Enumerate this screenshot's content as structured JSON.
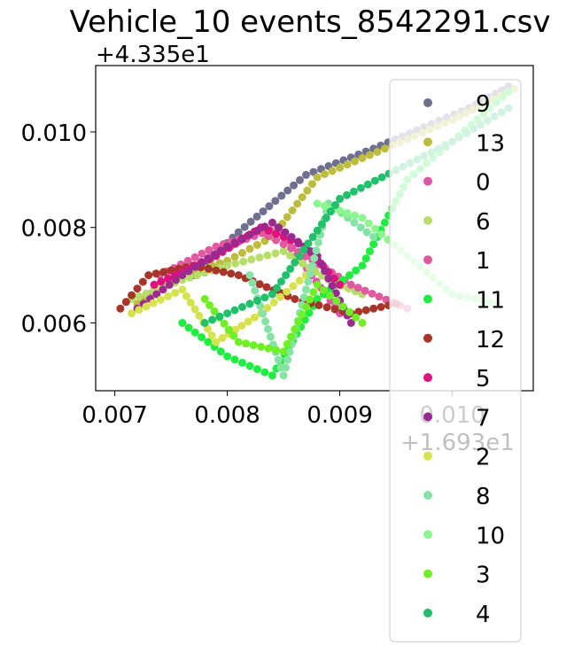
{
  "chart_data": {
    "type": "scatter",
    "title": "Vehicle_10 events_8542291.csv",
    "xlabel": "",
    "ylabel": "",
    "x_offset_label": "+1.693e1",
    "y_offset_label": "+4.335e1",
    "x_ticks": [
      0.007,
      0.008,
      0.009,
      0.01
    ],
    "x_tick_labels": [
      "0.007",
      "0.008",
      "0.009",
      "0.010"
    ],
    "y_ticks": [
      0.006,
      0.008,
      0.01
    ],
    "y_tick_labels": [
      "0.006",
      "0.008",
      "0.010"
    ],
    "xlim": [
      0.00683,
      0.01072
    ],
    "ylim": [
      0.00458,
      0.01139
    ],
    "grid": false,
    "legend_position": "right, extending below the axes",
    "series": [
      {
        "name": "9",
        "color": "#6f6f8f",
        "x": [
          0.0077,
          0.0081,
          0.0087,
          0.0093,
          0.00975,
          0.01015,
          0.0105
        ],
        "y": [
          0.007,
          0.0079,
          0.0091,
          0.00965,
          0.0101,
          0.0105,
          0.01095
        ]
      },
      {
        "name": "13",
        "color": "#bdbd3d",
        "x": [
          0.0072,
          0.0076,
          0.008,
          0.0084,
          0.0088,
          0.0094,
          0.01,
          0.01055
        ],
        "y": [
          0.0064,
          0.007,
          0.0073,
          0.0078,
          0.00905,
          0.00965,
          0.01025,
          0.0109
        ]
      },
      {
        "name": "0",
        "color": "#e055a8",
        "x": [
          0.0073,
          0.0077,
          0.0081,
          0.00845,
          0.00875,
          0.009
        ],
        "y": [
          0.0066,
          0.0072,
          0.0077,
          0.008,
          0.007,
          0.0062
        ]
      },
      {
        "name": "6",
        "color": "#b8dd6a",
        "x": [
          0.00715,
          0.0076,
          0.008,
          0.0085,
          0.0089,
          0.0092
        ],
        "y": [
          0.0065,
          0.0069,
          0.0072,
          0.0075,
          0.0069,
          0.0066
        ]
      },
      {
        "name": "1",
        "color": "#e05aa0",
        "x": [
          0.0074,
          0.0079,
          0.0083,
          0.0087,
          0.0091,
          0.0096
        ],
        "y": [
          0.007,
          0.0076,
          0.0079,
          0.0074,
          0.0068,
          0.0063
        ]
      },
      {
        "name": "11",
        "color": "#1fed3f",
        "x": [
          0.0076,
          0.008,
          0.0084,
          0.0088,
          0.0092,
          0.0096,
          0.01,
          0.0105
        ],
        "y": [
          0.006,
          0.0053,
          0.0049,
          0.0065,
          0.0072,
          0.009,
          0.0098,
          0.01085
        ]
      },
      {
        "name": "12",
        "color": "#a8352a",
        "x": [
          0.00705,
          0.0073,
          0.0077,
          0.0081,
          0.0086,
          0.0091,
          0.0095
        ],
        "y": [
          0.0063,
          0.007,
          0.0072,
          0.007,
          0.0065,
          0.0062,
          0.0064
        ]
      },
      {
        "name": "5",
        "color": "#e0107f",
        "x": [
          0.00735,
          0.0079,
          0.0083,
          0.0087,
          0.009
        ],
        "y": [
          0.0068,
          0.0074,
          0.008,
          0.0076,
          0.0068
        ]
      },
      {
        "name": "7",
        "color": "#9b2a8e",
        "x": [
          0.0072,
          0.0076,
          0.008,
          0.0084,
          0.0088,
          0.0091
        ],
        "y": [
          0.0063,
          0.007,
          0.0076,
          0.0081,
          0.0074,
          0.006
        ]
      },
      {
        "name": "2",
        "color": "#d6e34e",
        "x": [
          0.00715,
          0.0076,
          0.0079,
          0.0083,
          0.0087
        ],
        "y": [
          0.0062,
          0.0067,
          0.0056,
          0.0062,
          0.007
        ]
      },
      {
        "name": "8",
        "color": "#85e3a5",
        "x": [
          0.0082,
          0.0085,
          0.0089,
          0.0093
        ],
        "y": [
          0.007,
          0.0049,
          0.0085,
          0.0078
        ]
      },
      {
        "name": "10",
        "color": "#8cf58e",
        "x": [
          0.0088,
          0.0092,
          0.0096,
          0.01,
          0.0104
        ],
        "y": [
          0.0085,
          0.0082,
          0.0074,
          0.0066,
          0.0064
        ]
      },
      {
        "name": "3",
        "color": "#6fef25",
        "x": [
          0.0078,
          0.0081,
          0.0085,
          0.0088,
          0.0092
        ],
        "y": [
          0.0065,
          0.0056,
          0.0054,
          0.0068,
          0.006
        ]
      },
      {
        "name": "4",
        "color": "#21c06a",
        "x": [
          0.0078,
          0.0084,
          0.009,
          0.0095,
          0.01,
          0.0105
        ],
        "y": [
          0.006,
          0.0066,
          0.0086,
          0.0092,
          0.0098,
          0.0105
        ]
      }
    ]
  }
}
